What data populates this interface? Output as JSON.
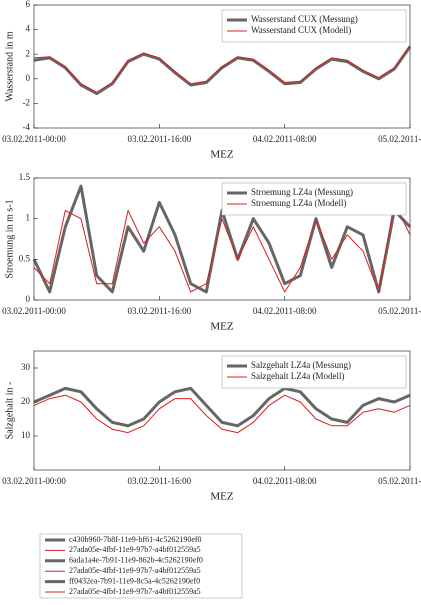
{
  "chart_data": [
    {
      "type": "line",
      "ylabel": "Wasserstand in m",
      "xlabel": "MEZ",
      "x": [
        "03.02.2011-00:00",
        "03.02.2011-02:00",
        "03.02.2011-04:00",
        "03.02.2011-06:00",
        "03.02.2011-08:00",
        "03.02.2011-10:00",
        "03.02.2011-12:00",
        "03.02.2011-14:00",
        "03.02.2011-16:00",
        "03.02.2011-18:00",
        "03.02.2011-20:00",
        "03.02.2011-22:00",
        "04.02.2011-00:00",
        "04.02.2011-02:00",
        "04.02.2011-04:00",
        "04.02.2011-06:00",
        "04.02.2011-08:00",
        "04.02.2011-10:00",
        "04.02.2011-12:00",
        "04.02.2011-14:00",
        "04.02.2011-16:00",
        "04.02.2011-18:00",
        "04.02.2011-20:00",
        "04.02.2011-22:00",
        "05.02.2011-00:00"
      ],
      "series": [
        {
          "name": "Wasserstand CUX (Messung)",
          "color": "#666666",
          "width": 3,
          "values": [
            1.5,
            1.7,
            0.9,
            -0.5,
            -1.2,
            -0.4,
            1.4,
            2.0,
            1.6,
            0.5,
            -0.5,
            -0.3,
            0.9,
            1.7,
            1.5,
            0.6,
            -0.4,
            -0.3,
            0.8,
            1.6,
            1.4,
            0.6,
            0.0,
            0.8,
            2.6
          ]
        },
        {
          "name": "Wasserstand CUX (Modell)",
          "color": "#d62020",
          "width": 1,
          "values": [
            1.7,
            1.8,
            1.0,
            -0.4,
            -1.1,
            -0.3,
            1.5,
            2.1,
            1.7,
            0.6,
            -0.4,
            -0.2,
            1.0,
            1.8,
            1.6,
            0.7,
            -0.3,
            -0.2,
            0.9,
            1.7,
            1.5,
            0.7,
            0.1,
            0.9,
            2.7
          ]
        }
      ],
      "xlim": [
        "03.02.2011-00:00",
        "05.02.2011-00:00"
      ],
      "xticks": [
        "03.02.2011-00:00",
        "03.02.2011-16:00",
        "04.02.2011-08:00",
        "05.02.2011-00:00"
      ],
      "ylim": [
        -4,
        6
      ],
      "yticks": [
        -4,
        -2,
        0,
        2,
        4,
        6
      ]
    },
    {
      "type": "line",
      "ylabel": "Stroemung in m s-1",
      "xlabel": "MEZ",
      "x": [
        "03.02.2011-00:00",
        "03.02.2011-02:00",
        "03.02.2011-04:00",
        "03.02.2011-06:00",
        "03.02.2011-08:00",
        "03.02.2011-10:00",
        "03.02.2011-12:00",
        "03.02.2011-14:00",
        "03.02.2011-16:00",
        "03.02.2011-18:00",
        "03.02.2011-20:00",
        "03.02.2011-22:00",
        "04.02.2011-00:00",
        "04.02.2011-02:00",
        "04.02.2011-04:00",
        "04.02.2011-06:00",
        "04.02.2011-08:00",
        "04.02.2011-10:00",
        "04.02.2011-12:00",
        "04.02.2011-14:00",
        "04.02.2011-16:00",
        "04.02.2011-18:00",
        "04.02.2011-20:00",
        "04.02.2011-22:00",
        "05.02.2011-00:00"
      ],
      "series": [
        {
          "name": "Stroemung LZ4a (Messung)",
          "color": "#666666",
          "width": 3,
          "values": [
            0.5,
            0.1,
            0.9,
            1.4,
            0.3,
            0.1,
            0.9,
            0.6,
            1.2,
            0.8,
            0.2,
            0.1,
            1.1,
            0.5,
            1.0,
            0.7,
            0.2,
            0.3,
            1.0,
            0.4,
            0.9,
            0.8,
            0.1,
            1.1,
            0.9
          ]
        },
        {
          "name": "Stroemung LZ4a (Modell)",
          "color": "#d62020",
          "width": 1,
          "values": [
            0.4,
            0.2,
            1.1,
            1.0,
            0.2,
            0.2,
            1.1,
            0.7,
            0.9,
            0.6,
            0.1,
            0.2,
            1.0,
            0.5,
            0.9,
            0.5,
            0.1,
            0.4,
            1.0,
            0.5,
            0.8,
            0.6,
            0.1,
            1.2,
            0.8
          ]
        }
      ],
      "xlim": [
        "03.02.2011-00:00",
        "05.02.2011-00:00"
      ],
      "xticks": [
        "03.02.2011-00:00",
        "03.02.2011-16:00",
        "04.02.2011-08:00",
        "05.02.2011-00:00"
      ],
      "ylim": [
        0,
        1.5
      ],
      "yticks": [
        0,
        0.5,
        1,
        1.5
      ]
    },
    {
      "type": "line",
      "ylabel": "Salzgehalt in -",
      "xlabel": "MEZ",
      "x": [
        "03.02.2011-00:00",
        "03.02.2011-02:00",
        "03.02.2011-04:00",
        "03.02.2011-06:00",
        "03.02.2011-08:00",
        "03.02.2011-10:00",
        "03.02.2011-12:00",
        "03.02.2011-14:00",
        "03.02.2011-16:00",
        "03.02.2011-18:00",
        "03.02.2011-20:00",
        "03.02.2011-22:00",
        "04.02.2011-00:00",
        "04.02.2011-02:00",
        "04.02.2011-04:00",
        "04.02.2011-06:00",
        "04.02.2011-08:00",
        "04.02.2011-10:00",
        "04.02.2011-12:00",
        "04.02.2011-14:00",
        "04.02.2011-16:00",
        "04.02.2011-18:00",
        "04.02.2011-20:00",
        "04.02.2011-22:00",
        "05.02.2011-00:00"
      ],
      "series": [
        {
          "name": "Salzgehalt LZ4a (Messung)",
          "color": "#666666",
          "width": 3,
          "values": [
            20,
            22,
            24,
            23,
            18,
            14,
            13,
            15,
            20,
            23,
            24,
            19,
            14,
            13,
            16,
            21,
            24,
            23,
            18,
            15,
            14,
            19,
            21,
            20,
            22
          ]
        },
        {
          "name": "Salzgehalt LZ4a (Modell)",
          "color": "#d62020",
          "width": 1,
          "values": [
            19,
            21,
            22,
            20,
            15,
            12,
            11,
            13,
            18,
            21,
            21,
            16,
            12,
            11,
            14,
            19,
            22,
            20,
            15,
            13,
            13,
            17,
            18,
            17,
            19
          ]
        }
      ],
      "xlim": [
        "03.02.2011-00:00",
        "05.02.2011-00:00"
      ],
      "xticks": [
        "03.02.2011-00:00",
        "03.02.2011-16:00",
        "04.02.2011-08:00",
        "05.02.2011-00:00"
      ],
      "ylim": [
        0,
        35
      ],
      "yticks": [
        10,
        20,
        30
      ]
    }
  ],
  "legend": [
    {
      "name": "c430b960-7b8f-11e9-bf61-4c5262190ef0",
      "color": "#666666",
      "width": 3
    },
    {
      "name": "27ada05e-4fbf-11e9-97b7-a4bf012559a5",
      "color": "#d62020",
      "width": 1
    },
    {
      "name": "6ada1a4e-7b91-11e9-862b-4c5262190ef0",
      "color": "#666666",
      "width": 3
    },
    {
      "name": "27ada05e-4fbf-11e9-97b7-a4bf012559a5",
      "color": "#d62020",
      "width": 1
    },
    {
      "name": "ff0432ea-7b91-11e9-8c5a-4c5262190ef0",
      "color": "#666666",
      "width": 3
    },
    {
      "name": "27ada05e-4fbf-11e9-97b7-a4bf012559a5",
      "color": "#d62020",
      "width": 1
    }
  ]
}
